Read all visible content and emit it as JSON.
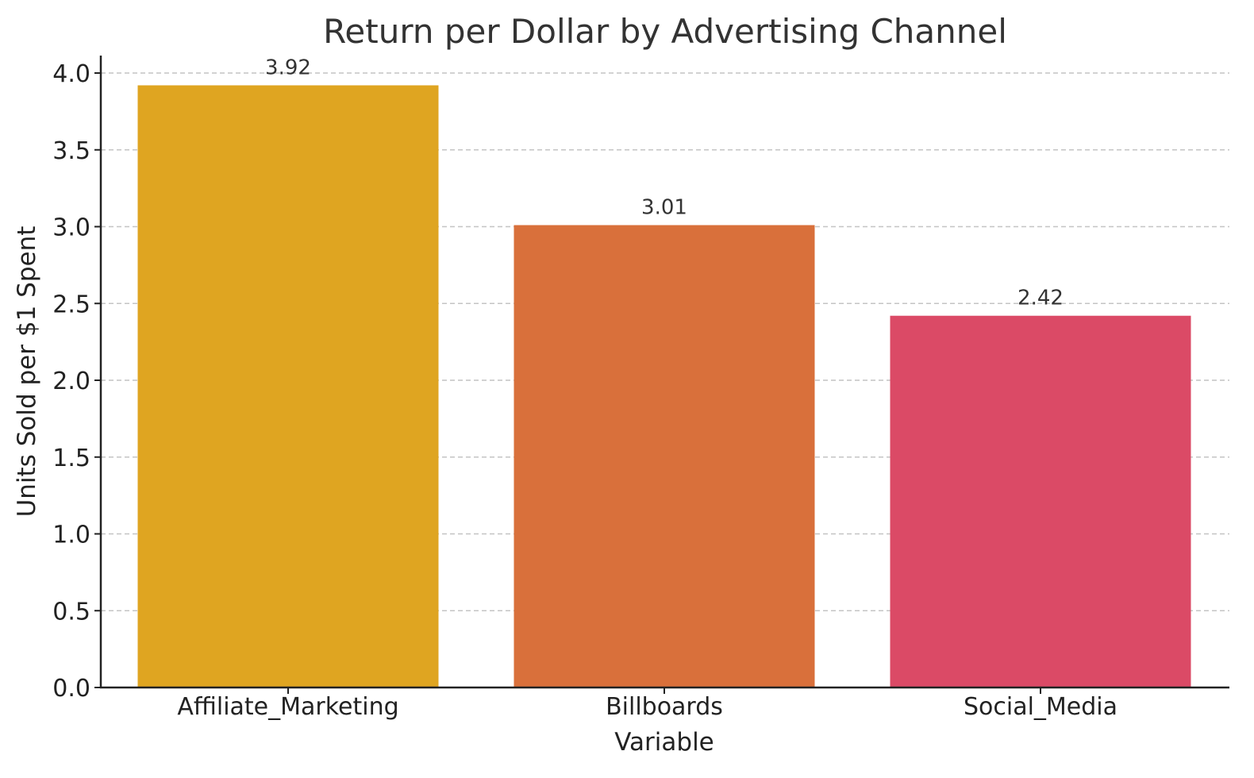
{
  "chart_data": {
    "type": "bar",
    "title": "Return per Dollar by Advertising Channel",
    "xlabel": "Variable",
    "ylabel": "Units Sold per $1 Spent",
    "categories": [
      "Affiliate_Marketing",
      "Billboards",
      "Social_Media"
    ],
    "values": [
      3.92,
      3.01,
      2.42
    ],
    "value_labels": [
      "3.92",
      "3.01",
      "2.42"
    ],
    "colors": [
      "#dfa521",
      "#d9703b",
      "#db4a66"
    ],
    "ylim": [
      0,
      4.1
    ],
    "yticks": [
      0.0,
      0.5,
      1.0,
      1.5,
      2.0,
      2.5,
      3.0,
      3.5,
      4.0
    ],
    "ytick_labels": [
      "0.0",
      "0.5",
      "1.0",
      "1.5",
      "2.0",
      "2.5",
      "3.0",
      "3.5",
      "4.0"
    ],
    "grid": true,
    "grid_axis": "y"
  }
}
